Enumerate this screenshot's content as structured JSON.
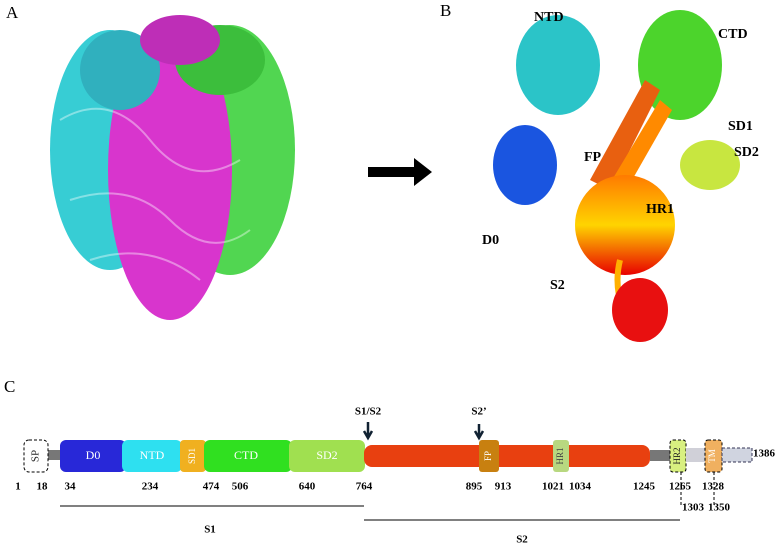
{
  "panels": {
    "a": {
      "label": "A"
    },
    "b": {
      "label": "B",
      "labels": [
        "NTD",
        "CTD",
        "SD1",
        "SD2",
        "FP",
        "HR1",
        "D0",
        "S2"
      ]
    },
    "c": {
      "label": "C",
      "domains": [
        "SP",
        "D0",
        "NTD",
        "SD1",
        "CTD",
        "SD2",
        "FP",
        "HR1",
        "HR2",
        "TM"
      ],
      "cleavage_sites": [
        "S1/S2",
        "S2’"
      ],
      "positions": [
        1,
        18,
        34,
        234,
        474,
        506,
        640,
        764,
        895,
        913,
        1021,
        1034,
        1245,
        1265,
        1303,
        1328,
        1350,
        1386
      ],
      "subunits": [
        "S1",
        "S2"
      ]
    }
  }
}
